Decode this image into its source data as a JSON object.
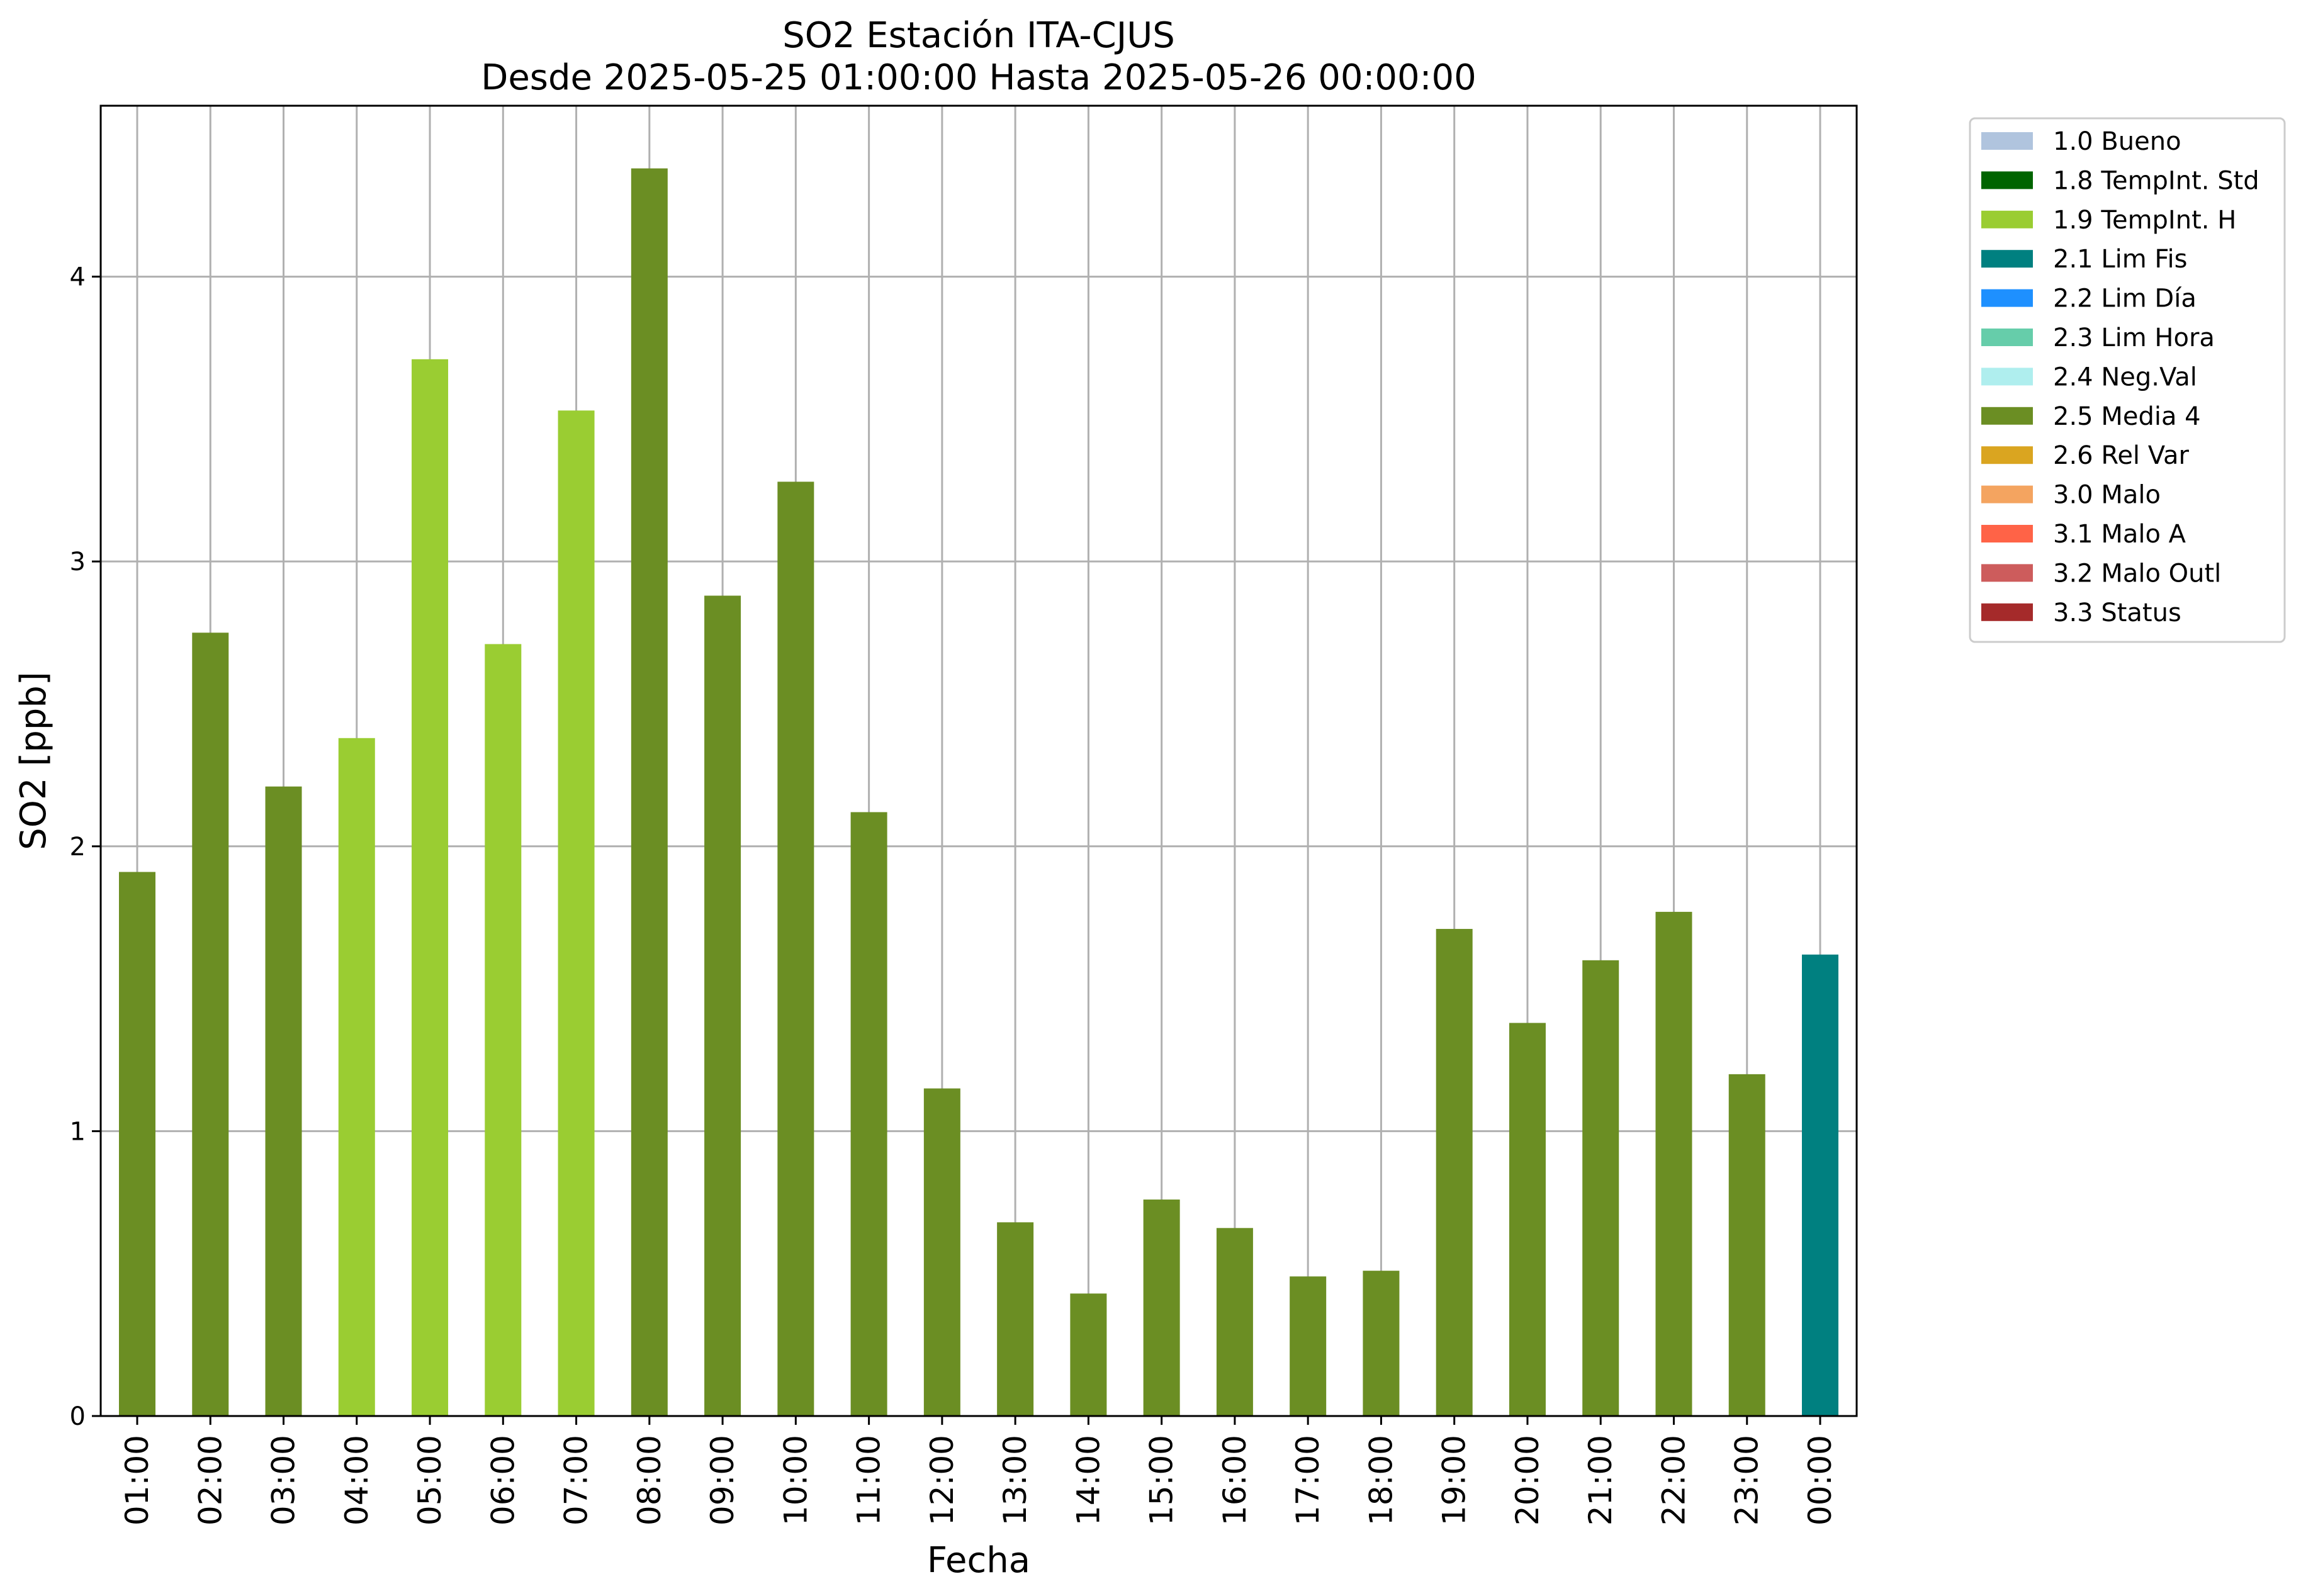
{
  "chart_data": {
    "type": "bar",
    "title": "SO2 Estación ITA-CJUS",
    "subtitle": "Desde 2025-05-25 01:00:00 Hasta 2025-05-26 00:00:00",
    "xlabel": "Fecha",
    "ylabel": "SO2 [ppb]",
    "ylim": [
      0,
      4.6
    ],
    "yticks": [
      "0",
      "1",
      "2",
      "3",
      "4"
    ],
    "grid": true,
    "legend_position": "outside-top-right",
    "categories": [
      "01:00",
      "02:00",
      "03:00",
      "04:00",
      "05:00",
      "06:00",
      "07:00",
      "08:00",
      "09:00",
      "10:00",
      "11:00",
      "12:00",
      "13:00",
      "14:00",
      "15:00",
      "16:00",
      "17:00",
      "18:00",
      "19:00",
      "20:00",
      "21:00",
      "22:00",
      "23:00",
      "00:00"
    ],
    "values": [
      1.91,
      2.75,
      2.21,
      2.38,
      3.71,
      2.71,
      3.53,
      4.38,
      2.88,
      3.28,
      2.12,
      1.15,
      0.68,
      0.43,
      0.76,
      0.66,
      0.49,
      0.51,
      1.71,
      1.38,
      1.6,
      1.77,
      1.2,
      1.62
    ],
    "bar_flags": [
      "2.5 Media 4",
      "2.5 Media 4",
      "2.5 Media 4",
      "1.9 TempInt. H",
      "1.9 TempInt. H",
      "1.9 TempInt. H",
      "1.9 TempInt. H",
      "2.5 Media 4",
      "2.5 Media 4",
      "2.5 Media 4",
      "2.5 Media 4",
      "2.5 Media 4",
      "2.5 Media 4",
      "2.5 Media 4",
      "2.5 Media 4",
      "2.5 Media 4",
      "2.5 Media 4",
      "2.5 Media 4",
      "2.5 Media 4",
      "2.5 Media 4",
      "2.5 Media 4",
      "2.5 Media 4",
      "2.5 Media 4",
      "2.1 Lim Fis"
    ],
    "legend": [
      {
        "label": "1.0 Bueno",
        "color": "#b0c4de"
      },
      {
        "label": "1.8 TempInt. Std",
        "color": "#006400"
      },
      {
        "label": "1.9 TempInt. H",
        "color": "#9acd32"
      },
      {
        "label": "2.1 Lim Fis",
        "color": "#008080"
      },
      {
        "label": "2.2 Lim Día",
        "color": "#1e90ff"
      },
      {
        "label": "2.3 Lim Hora",
        "color": "#66cdaa"
      },
      {
        "label": "2.4 Neg.Val",
        "color": "#afeeee"
      },
      {
        "label": "2.5 Media 4",
        "color": "#6b8e23"
      },
      {
        "label": "2.6 Rel Var",
        "color": "#daa520"
      },
      {
        "label": "3.0 Malo",
        "color": "#f4a460"
      },
      {
        "label": "3.1 Malo A",
        "color": "#ff6347"
      },
      {
        "label": "3.2 Malo Outl",
        "color": "#cd5c5c"
      },
      {
        "label": "3.3 Status",
        "color": "#a52a2a"
      }
    ]
  }
}
